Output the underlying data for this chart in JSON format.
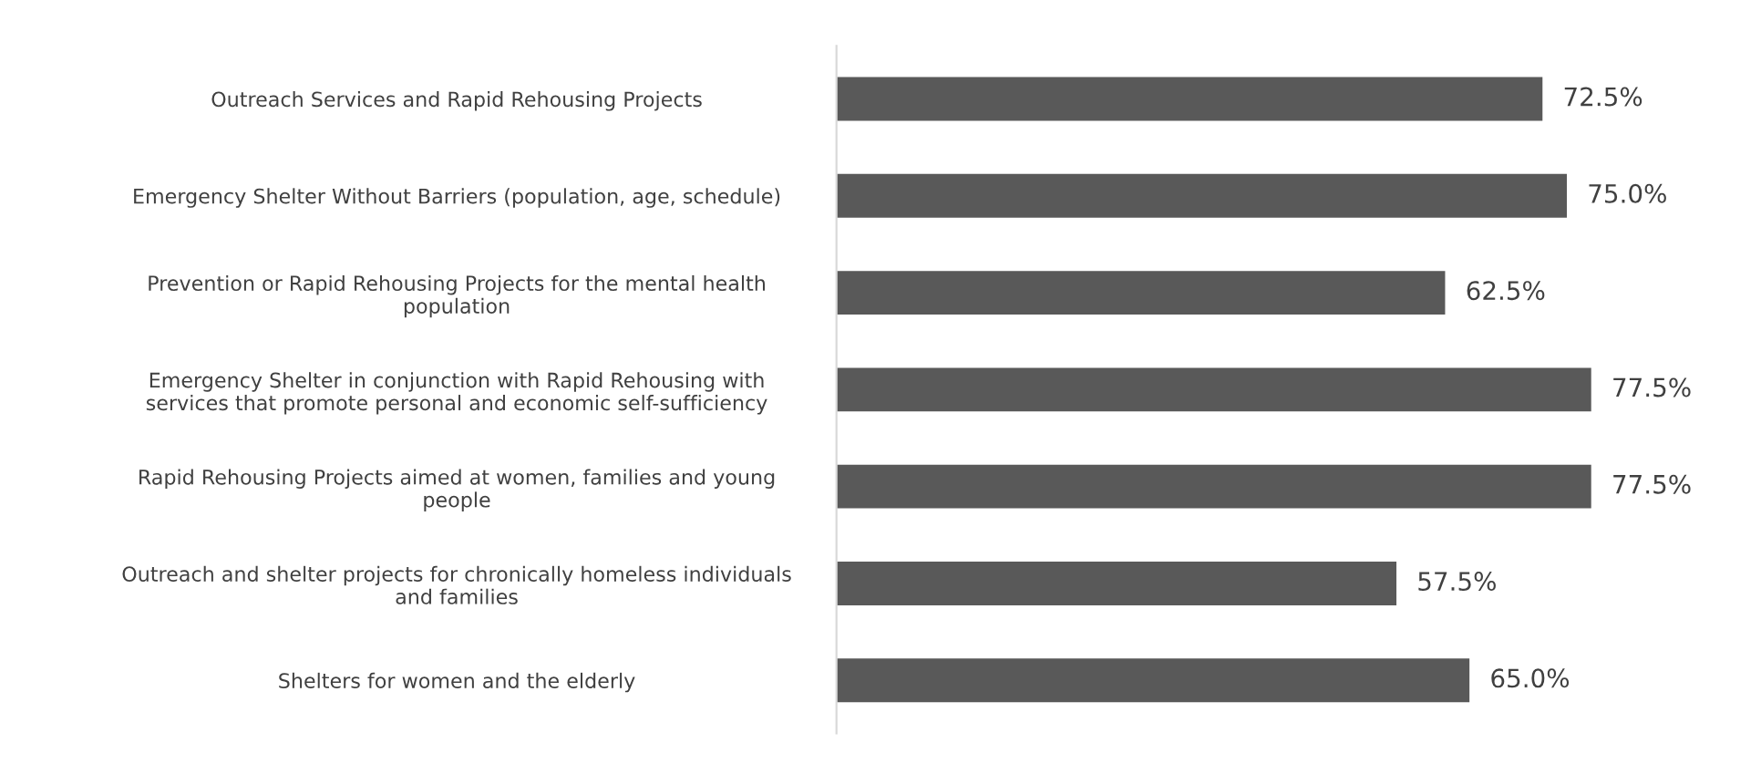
{
  "chart_data": {
    "type": "bar",
    "orientation": "horizontal",
    "categories": [
      "Outreach Services and Rapid Rehousing Projects",
      "Emergency Shelter Without Barriers (population, age, schedule)",
      "Prevention or Rapid Rehousing Projects for the mental health\npopulation",
      "Emergency Shelter in conjunction with Rapid Rehousing with\nservices that promote personal and economic self-sufficiency",
      "Rapid Rehousing Projects aimed at women, families and young\npeople",
      "Outreach and shelter projects for chronically homeless individuals\nand families",
      "Shelters for women and the elderly"
    ],
    "values": [
      72.5,
      75.0,
      62.5,
      77.5,
      77.5,
      57.5,
      65.0
    ],
    "value_labels": [
      "72.5%",
      "75.0%",
      "62.5%",
      "77.5%",
      "77.5%",
      "57.5%",
      "65.0%"
    ],
    "color": "#595959",
    "grid": false,
    "legend": false
  }
}
